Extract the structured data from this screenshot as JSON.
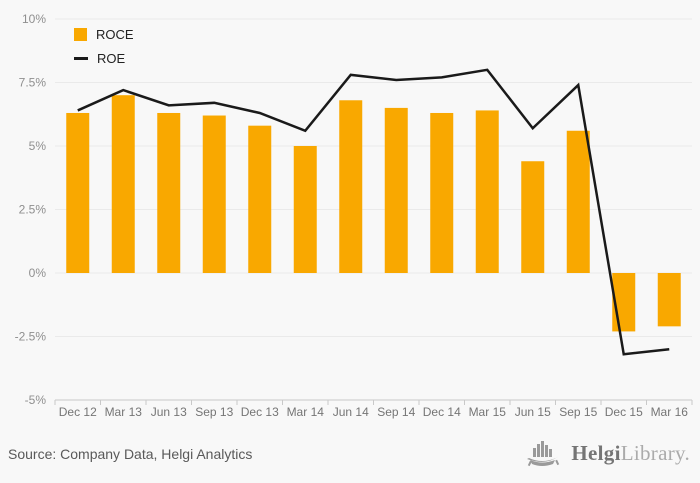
{
  "chart_data": {
    "type": "bar",
    "subtype": "bar-and-line-combo",
    "categories": [
      "Dec 12",
      "Mar 13",
      "Jun 13",
      "Sep 13",
      "Dec 13",
      "Mar 14",
      "Jun 14",
      "Sep 14",
      "Dec 14",
      "Mar 15",
      "Jun 15",
      "Sep 15",
      "Dec 15",
      "Mar 16"
    ],
    "series": [
      {
        "name": "ROCE",
        "type": "bar",
        "color": "#F9A800",
        "values": [
          6.3,
          7.0,
          6.3,
          6.2,
          5.8,
          5.0,
          6.8,
          6.5,
          6.3,
          6.4,
          4.4,
          5.6,
          -2.3,
          -2.1
        ]
      },
      {
        "name": "ROE",
        "type": "line",
        "color": "#1A1A1A",
        "values": [
          6.4,
          7.2,
          6.6,
          6.7,
          6.3,
          5.6,
          7.8,
          7.6,
          7.7,
          8.0,
          5.7,
          7.4,
          -3.2,
          -3.0
        ]
      }
    ],
    "title": "",
    "xlabel": "",
    "ylabel": "",
    "ylim": [
      -5,
      10
    ],
    "ytick_step": 2.5,
    "yticks": [
      10,
      7.5,
      5,
      2.5,
      0,
      -2.5,
      -5
    ],
    "ytick_labels": [
      "10%",
      "7.5%",
      "5%",
      "2.5%",
      "0%",
      "-2.5%",
      "-5%"
    ],
    "grid": true,
    "legend_position": "top-left",
    "unit": "%"
  },
  "legend": {
    "roce_label": "ROCE",
    "roe_label": "ROE"
  },
  "footer": {
    "source": "Source: Company Data, Helgi Analytics",
    "logo_bold": "Helgi",
    "logo_light": "Library."
  },
  "colors": {
    "background": "#F8F8F8",
    "bar": "#F9A800",
    "line": "#1A1A1A",
    "grid": "#EAEAEA",
    "axis": "#C9C9C9",
    "tick": "#C9C9C9",
    "y_label": "#8F8F8F",
    "x_label": "#757575",
    "legend_text": "#222222",
    "source_text": "#595959",
    "logo_dark": "#757575",
    "logo_light": "#ABABAB"
  }
}
